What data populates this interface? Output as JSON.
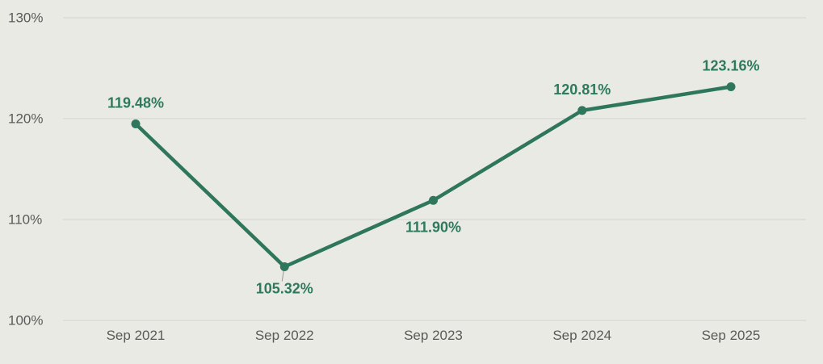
{
  "chart_style": {
    "background_color": "#e9eae4",
    "grid_color": "#d8d8d4",
    "axis_text_color": "#5a5a5a",
    "series_color": "#2e765c",
    "data_label_color": "#2e7a5e",
    "leader_line_color": "#9a9a94"
  },
  "chart_data": {
    "type": "line",
    "title": "",
    "xlabel": "",
    "ylabel": "",
    "categories": [
      "Sep 2021",
      "Sep 2022",
      "Sep 2023",
      "Sep 2024",
      "Sep 2025"
    ],
    "values": [
      119.48,
      105.32,
      111.9,
      120.81,
      123.16
    ],
    "data_labels": [
      "119.48%",
      "105.32%",
      "111.90%",
      "120.81%",
      "123.16%"
    ],
    "y_ticks": [
      {
        "value": 100,
        "label": "100%"
      },
      {
        "value": 110,
        "label": "110%"
      },
      {
        "value": 120,
        "label": "120%"
      },
      {
        "value": 130,
        "label": "130%"
      }
    ],
    "ylim": [
      100,
      130
    ],
    "grid": "horizontal",
    "legend_position": "none",
    "label_positions": [
      "above",
      "below-leader",
      "below",
      "above",
      "above"
    ]
  }
}
